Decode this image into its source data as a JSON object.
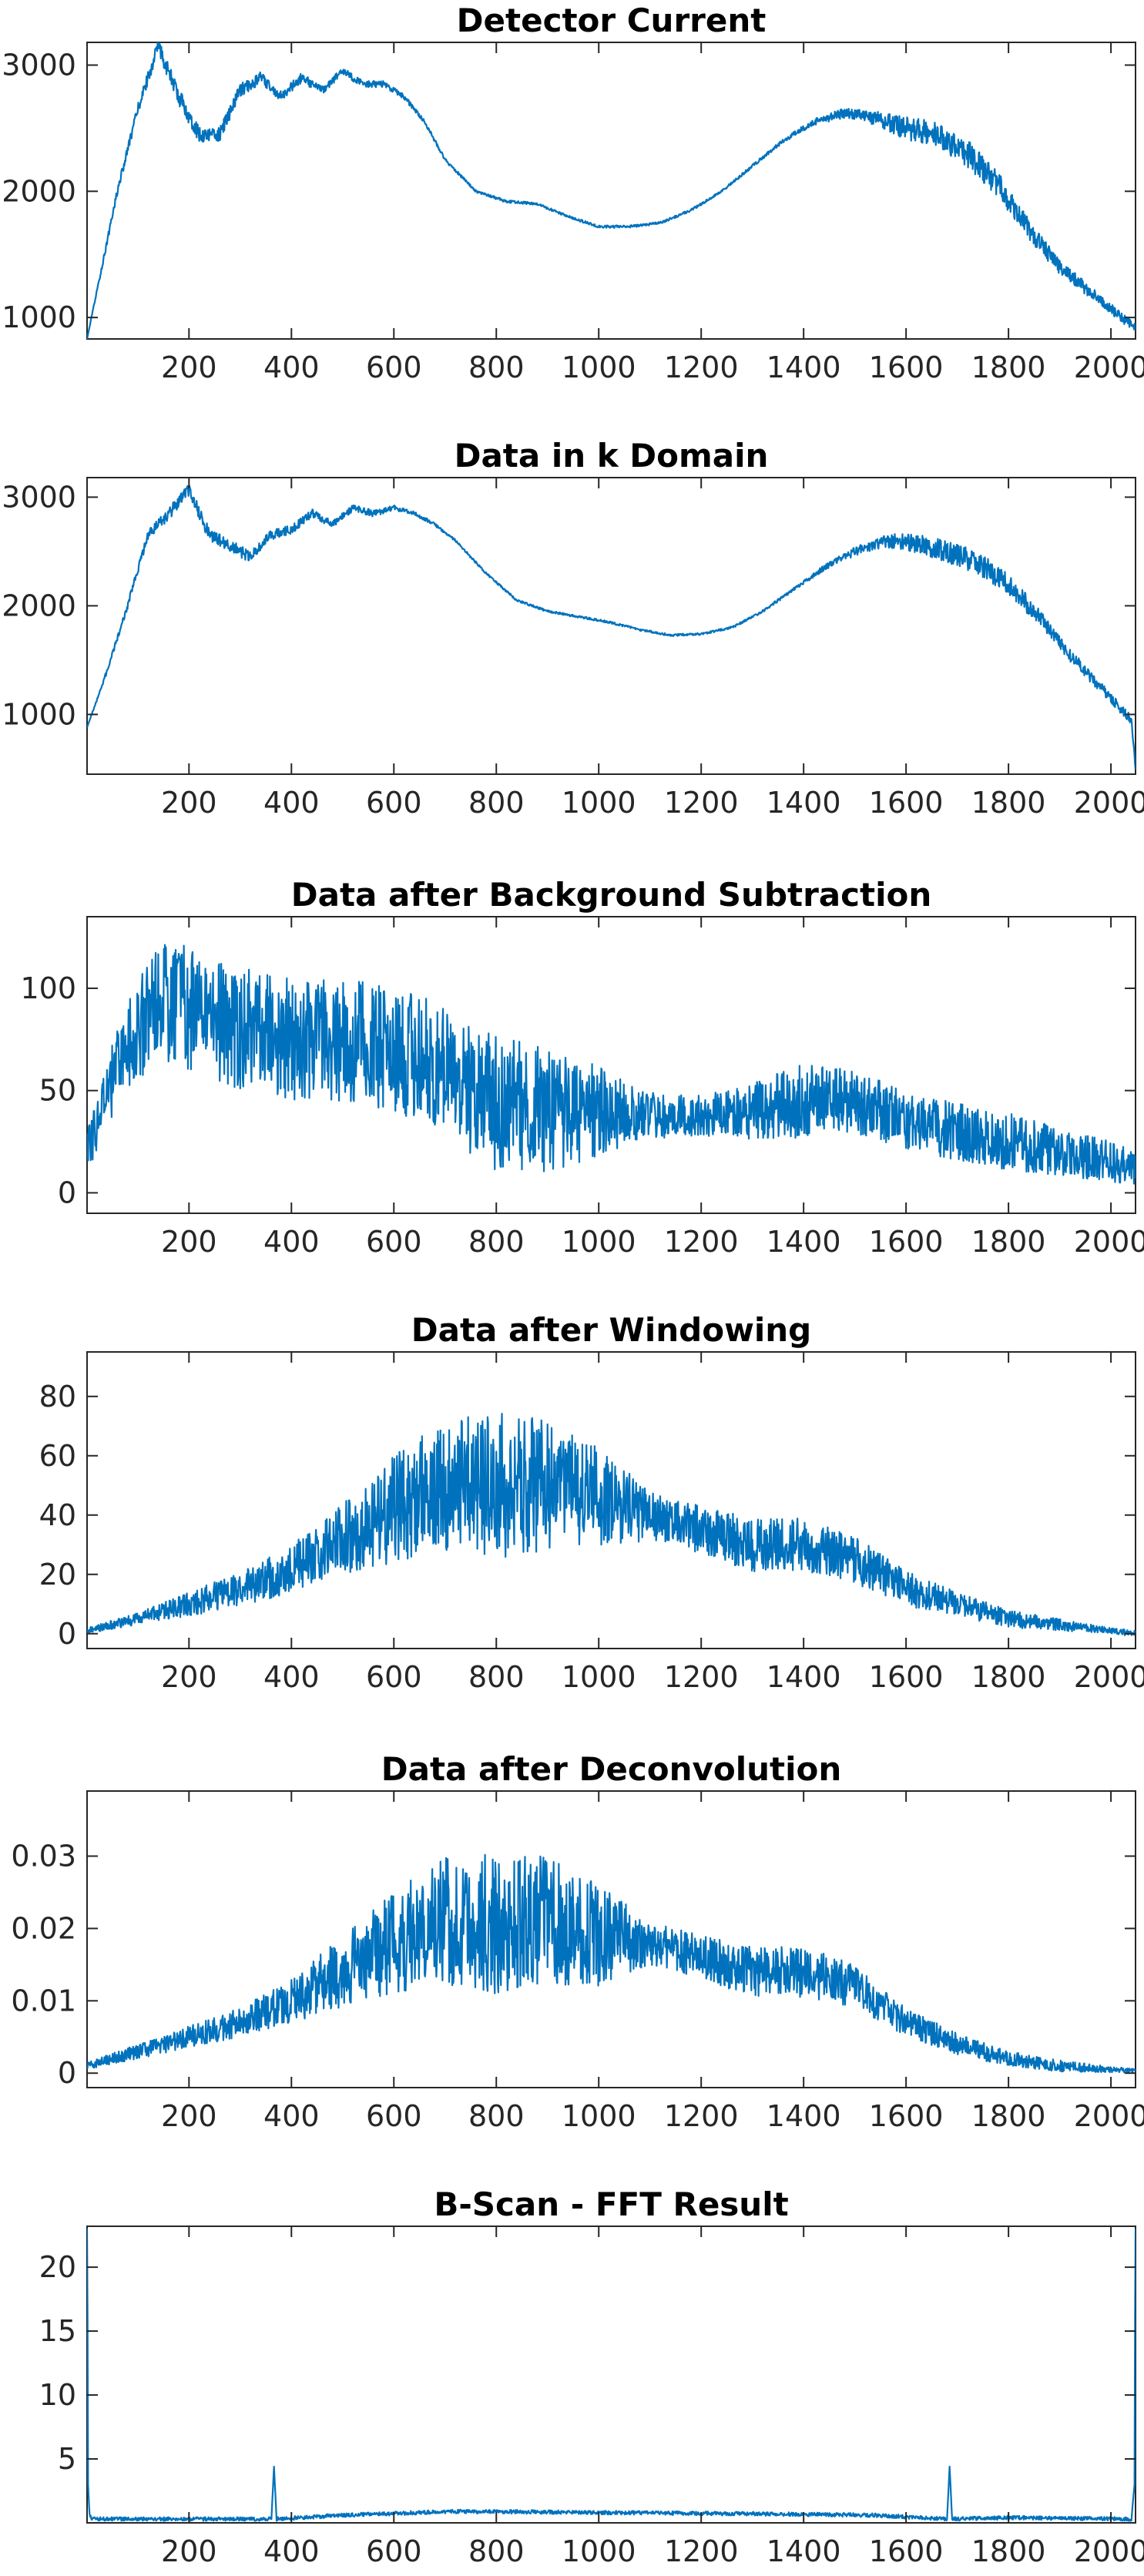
{
  "colors": {
    "series": "#0072BD",
    "axis": "#262626",
    "background": "#ffffff"
  },
  "chart_data": [
    {
      "type": "line",
      "title": "Detector Current",
      "xlabel": "",
      "ylabel": "",
      "xlim": [
        1,
        2048
      ],
      "ylim": [
        830,
        3180
      ],
      "xticks": [
        200,
        400,
        600,
        800,
        1000,
        1200,
        1400,
        1600,
        1800,
        2000
      ],
      "yticks": [
        1000,
        2000,
        3000
      ],
      "grid": false,
      "series": [
        {
          "x": [
            1,
            30,
            60,
            100,
            140,
            180,
            220,
            260,
            300,
            340,
            380,
            420,
            460,
            500,
            540,
            580,
            620,
            660,
            700,
            760,
            820,
            880,
            940,
            1000,
            1060,
            1120,
            1180,
            1240,
            1300,
            1360,
            1420,
            1480,
            1540,
            1600,
            1660,
            1720,
            1780,
            1840,
            1900,
            1960,
            2020,
            2048
          ],
          "y": [
            830,
            1400,
            2000,
            2650,
            3150,
            2750,
            2450,
            2450,
            2800,
            2900,
            2750,
            2900,
            2800,
            2950,
            2850,
            2850,
            2750,
            2550,
            2250,
            2000,
            1920,
            1900,
            1800,
            1720,
            1720,
            1750,
            1850,
            2000,
            2200,
            2400,
            2550,
            2620,
            2580,
            2500,
            2450,
            2300,
            2050,
            1700,
            1400,
            1200,
            1000,
            920
          ],
          "noise": [
            0,
            20,
            30,
            40,
            60,
            70,
            60,
            60,
            50,
            50,
            40,
            40,
            30,
            30,
            30,
            25,
            20,
            15,
            12,
            10,
            10,
            10,
            10,
            10,
            10,
            10,
            10,
            10,
            12,
            15,
            25,
            40,
            60,
            90,
            100,
            110,
            100,
            80,
            60,
            50,
            40,
            30
          ]
        }
      ]
    },
    {
      "type": "line",
      "title": "Data in k Domain",
      "xlabel": "",
      "ylabel": "",
      "xlim": [
        1,
        2048
      ],
      "ylim": [
        450,
        3180
      ],
      "xticks": [
        200,
        400,
        600,
        800,
        1000,
        1200,
        1400,
        1600,
        1800,
        2000
      ],
      "yticks": [
        1000,
        2000,
        3000
      ],
      "grid": false,
      "series": [
        {
          "x": [
            1,
            40,
            80,
            120,
            160,
            200,
            240,
            280,
            320,
            360,
            400,
            440,
            480,
            520,
            560,
            600,
            640,
            680,
            720,
            780,
            840,
            900,
            960,
            1020,
            1080,
            1140,
            1200,
            1260,
            1320,
            1380,
            1440,
            1500,
            1560,
            1620,
            1680,
            1740,
            1800,
            1860,
            1920,
            1980,
            2040,
            2048
          ],
          "y": [
            880,
            1400,
            2000,
            2650,
            2850,
            3050,
            2650,
            2550,
            2450,
            2650,
            2700,
            2850,
            2750,
            2900,
            2850,
            2900,
            2850,
            2750,
            2600,
            2300,
            2050,
            1950,
            1900,
            1850,
            1780,
            1730,
            1740,
            1800,
            1950,
            2150,
            2350,
            2500,
            2600,
            2580,
            2500,
            2400,
            2200,
            1900,
            1550,
            1250,
            950,
            500
          ],
          "noise": [
            0,
            20,
            30,
            40,
            60,
            70,
            60,
            60,
            50,
            50,
            40,
            40,
            30,
            30,
            30,
            25,
            20,
            15,
            12,
            10,
            10,
            10,
            10,
            10,
            10,
            10,
            10,
            10,
            12,
            15,
            25,
            40,
            60,
            90,
            100,
            110,
            100,
            80,
            60,
            50,
            40,
            30
          ]
        }
      ]
    },
    {
      "type": "line",
      "title": "Data after Background Subtraction",
      "xlabel": "",
      "ylabel": "",
      "xlim": [
        1,
        2048
      ],
      "ylim": [
        -10,
        135
      ],
      "xticks": [
        200,
        400,
        600,
        800,
        1000,
        1200,
        1400,
        1600,
        1800,
        2000
      ],
      "yticks": [
        0,
        50,
        100
      ],
      "grid": false,
      "series": [
        {
          "x": [
            1,
            50,
            100,
            150,
            200,
            300,
            400,
            500,
            600,
            700,
            800,
            900,
            1000,
            1100,
            1200,
            1300,
            1400,
            1500,
            1600,
            1700,
            1800,
            1900,
            2000,
            2048
          ],
          "y": [
            20,
            55,
            80,
            95,
            90,
            80,
            75,
            75,
            70,
            60,
            45,
            40,
            40,
            38,
            38,
            40,
            45,
            45,
            35,
            30,
            25,
            20,
            15,
            12
          ],
          "noise": [
            10,
            18,
            25,
            30,
            30,
            30,
            30,
            30,
            30,
            32,
            35,
            30,
            22,
            12,
            10,
            14,
            18,
            16,
            14,
            14,
            14,
            12,
            10,
            8
          ]
        }
      ]
    },
    {
      "type": "line",
      "title": "Data after Windowing",
      "xlabel": "",
      "ylabel": "",
      "xlim": [
        1,
        2048
      ],
      "ylim": [
        -5,
        95
      ],
      "xticks": [
        200,
        400,
        600,
        800,
        1000,
        1200,
        1400,
        1600,
        1800,
        2000
      ],
      "yticks": [
        0,
        20,
        40,
        60,
        80
      ],
      "grid": false,
      "series": [
        {
          "x": [
            1,
            100,
            200,
            300,
            400,
            500,
            600,
            700,
            800,
            900,
            1000,
            1100,
            1200,
            1300,
            1400,
            1500,
            1600,
            1700,
            1800,
            1900,
            2000,
            2048
          ],
          "y": [
            1,
            5,
            10,
            15,
            22,
            32,
            42,
            50,
            50,
            50,
            45,
            40,
            35,
            30,
            30,
            25,
            15,
            10,
            5,
            3,
            1,
            0
          ],
          "noise": [
            1,
            2,
            4,
            6,
            8,
            12,
            18,
            22,
            25,
            22,
            18,
            8,
            8,
            9,
            9,
            8,
            6,
            4,
            3,
            2,
            1,
            1
          ]
        }
      ]
    },
    {
      "type": "line",
      "title": "Data after Deconvolution",
      "xlabel": "",
      "ylabel": "",
      "xlim": [
        1,
        2048
      ],
      "ylim": [
        -0.002,
        0.039
      ],
      "xticks": [
        200,
        400,
        600,
        800,
        1000,
        1200,
        1400,
        1600,
        1800,
        2000
      ],
      "yticks": [
        0,
        0.01,
        0.02,
        0.03
      ],
      "grid": false,
      "series": [
        {
          "x": [
            1,
            100,
            200,
            300,
            400,
            500,
            600,
            700,
            800,
            900,
            1000,
            1100,
            1200,
            1300,
            1400,
            1500,
            1600,
            1700,
            1800,
            1900,
            2000,
            2048
          ],
          "y": [
            0.001,
            0.003,
            0.005,
            0.007,
            0.01,
            0.014,
            0.018,
            0.021,
            0.021,
            0.021,
            0.019,
            0.018,
            0.016,
            0.014,
            0.014,
            0.012,
            0.007,
            0.004,
            0.002,
            0.001,
            0.0005,
            0.0003
          ],
          "noise": [
            0.0005,
            0.001,
            0.0015,
            0.002,
            0.003,
            0.005,
            0.007,
            0.009,
            0.01,
            0.009,
            0.007,
            0.003,
            0.003,
            0.0035,
            0.0035,
            0.003,
            0.002,
            0.0015,
            0.001,
            0.0008,
            0.0004,
            0.0003
          ]
        }
      ]
    },
    {
      "type": "line",
      "title": "B-Scan - FFT Result",
      "xlabel": "",
      "ylabel": "",
      "xlim": [
        1,
        2048
      ],
      "ylim": [
        0,
        23.2
      ],
      "xticks": [
        200,
        400,
        600,
        800,
        1000,
        1200,
        1400,
        1600,
        1800,
        2000
      ],
      "yticks": [
        5,
        10,
        15,
        20
      ],
      "grid": false,
      "series": [
        {
          "x": [
            1,
            2,
            3,
            6,
            10,
            200,
            361,
            366,
            371,
            500,
            724,
            1323,
            1540,
            1680,
            1685,
            1690,
            1800,
            2040,
            2046,
            2047,
            2048
          ],
          "y": [
            23,
            16,
            3,
            0.6,
            0.3,
            0.3,
            0.3,
            4.4,
            0.3,
            0.6,
            0.9,
            0.7,
            0.6,
            0.3,
            4.4,
            0.3,
            0.4,
            0.3,
            3,
            16,
            23
          ],
          "noise": [
            0,
            0,
            0,
            0.15,
            0.15,
            0.15,
            0.15,
            0,
            0.15,
            0.15,
            0.15,
            0.15,
            0.15,
            0.15,
            0,
            0.15,
            0.15,
            0.15,
            0,
            0,
            0
          ]
        }
      ]
    }
  ]
}
